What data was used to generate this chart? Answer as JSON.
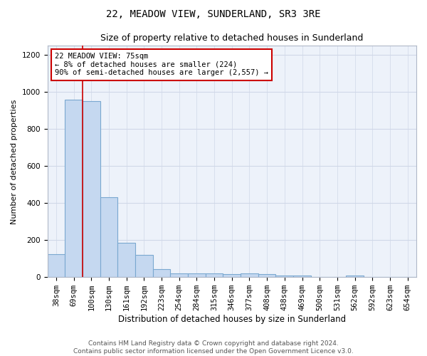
{
  "title1": "22, MEADOW VIEW, SUNDERLAND, SR3 3RE",
  "title2": "Size of property relative to detached houses in Sunderland",
  "xlabel": "Distribution of detached houses by size in Sunderland",
  "ylabel": "Number of detached properties",
  "categories": [
    "38sqm",
    "69sqm",
    "100sqm",
    "130sqm",
    "161sqm",
    "192sqm",
    "223sqm",
    "254sqm",
    "284sqm",
    "315sqm",
    "346sqm",
    "377sqm",
    "408sqm",
    "438sqm",
    "469sqm",
    "500sqm",
    "531sqm",
    "562sqm",
    "592sqm",
    "623sqm",
    "654sqm"
  ],
  "values": [
    125,
    960,
    950,
    430,
    185,
    120,
    45,
    20,
    20,
    20,
    15,
    20,
    15,
    10,
    10,
    0,
    0,
    8,
    0,
    0,
    0
  ],
  "bar_color": "#c5d8f0",
  "bar_edge_color": "#7aa8d0",
  "bar_edge_width": 0.8,
  "red_line_x": 1.5,
  "annotation_line1": "22 MEADOW VIEW: 75sqm",
  "annotation_line2": "← 8% of detached houses are smaller (224)",
  "annotation_line3": "90% of semi-detached houses are larger (2,557) →",
  "annotation_box_color": "#ffffff",
  "annotation_box_edge": "#cc0000",
  "ylim": [
    0,
    1250
  ],
  "yticks": [
    0,
    200,
    400,
    600,
    800,
    1000,
    1200
  ],
  "footer1": "Contains HM Land Registry data © Crown copyright and database right 2024.",
  "footer2": "Contains public sector information licensed under the Open Government Licence v3.0.",
  "bg_color": "#ffffff",
  "plot_bg_color": "#edf2fa",
  "grid_color": "#d0d8e8",
  "title1_fontsize": 10,
  "title2_fontsize": 9,
  "xlabel_fontsize": 8.5,
  "ylabel_fontsize": 8,
  "tick_fontsize": 7.5,
  "footer_fontsize": 6.5
}
